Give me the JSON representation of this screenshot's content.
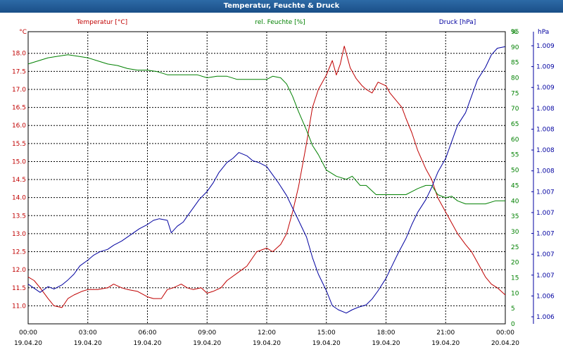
{
  "window": {
    "title": "Temperatur, Feuchte & Druck"
  },
  "chart_data": {
    "type": "line",
    "title": "Temperatur, Feuchte & Druck",
    "grid": true,
    "x_ticks": [
      {
        "time": "00:00",
        "date": "19.04.20"
      },
      {
        "time": "03:00",
        "date": "19.04.20"
      },
      {
        "time": "06:00",
        "date": "19.04.20"
      },
      {
        "time": "09:00",
        "date": "19.04.20"
      },
      {
        "time": "12:00",
        "date": "19.04.20"
      },
      {
        "time": "15:00",
        "date": "19.04.20"
      },
      {
        "time": "18:00",
        "date": "19.04.20"
      },
      {
        "time": "21:00",
        "date": "19.04.20"
      },
      {
        "time": "00:00",
        "date": "20.04.20"
      }
    ],
    "x_range_hours": [
      0,
      24
    ],
    "axes": {
      "temperature": {
        "label": "Temperatur [°C]",
        "unit": "°C",
        "color": "#c00000",
        "range": [
          10.5,
          18.6
        ],
        "ticks": [
          "11.0",
          "11.5",
          "12.0",
          "12.5",
          "13.0",
          "13.5",
          "14.0",
          "14.5",
          "15.0",
          "15.5",
          "16.0",
          "16.5",
          "17.0",
          "17.5",
          "18.0"
        ]
      },
      "humidity": {
        "label": "rel. Feuchte [%]",
        "unit": "%",
        "color": "#008000",
        "range": [
          0,
          95
        ],
        "ticks": [
          "0",
          "5",
          "10",
          "15",
          "20",
          "25",
          "30",
          "35",
          "40",
          "45",
          "50",
          "55",
          "60",
          "65",
          "70",
          "75",
          "80",
          "85",
          "90",
          "95"
        ]
      },
      "pressure": {
        "label": "Druck [hPa]",
        "unit": "hPa",
        "color": "#0000a0",
        "range": [
          1005.75,
          1009.28
        ],
        "ticks": [
          "1.006",
          "1.006",
          "1.007",
          "1.007",
          "1.007",
          "1.007",
          "1.007",
          "1.008",
          "1.008",
          "1.008",
          "1.008",
          "1.009",
          "1.009",
          "1.009"
        ]
      }
    },
    "series": [
      {
        "name": "Temperatur [°C]",
        "axis": "temperature",
        "color": "#c00000",
        "x": [
          0,
          0.3,
          0.6,
          1,
          1.3,
          1.7,
          2,
          2.3,
          2.7,
          3,
          3.5,
          4,
          4.3,
          4.7,
          5,
          5.5,
          6,
          6.3,
          6.7,
          7,
          7.3,
          7.7,
          8,
          8.3,
          8.7,
          9,
          9.3,
          9.7,
          10,
          10.5,
          11,
          11.5,
          12,
          12.3,
          12.7,
          13,
          13.3,
          13.6,
          14,
          14.3,
          14.6,
          15,
          15.3,
          15.5,
          15.7,
          15.9,
          16,
          16.2,
          16.5,
          16.8,
          17,
          17.3,
          17.6,
          18,
          18.2,
          18.5,
          18.8,
          19,
          19.3,
          19.6,
          20,
          20.3,
          20.6,
          21,
          21.3,
          21.6,
          22,
          22.3,
          22.6,
          23,
          23.3,
          23.6,
          24
        ],
        "y": [
          11.8,
          11.7,
          11.5,
          11.2,
          11.0,
          10.95,
          11.2,
          11.3,
          11.4,
          11.45,
          11.45,
          11.5,
          11.6,
          11.5,
          11.45,
          11.4,
          11.25,
          11.2,
          11.2,
          11.45,
          11.5,
          11.6,
          11.5,
          11.45,
          11.5,
          11.35,
          11.4,
          11.5,
          11.7,
          11.9,
          12.1,
          12.5,
          12.6,
          12.5,
          12.7,
          13.0,
          13.6,
          14.3,
          15.5,
          16.5,
          17.0,
          17.4,
          17.8,
          17.4,
          17.7,
          18.2,
          18.0,
          17.6,
          17.3,
          17.1,
          17.0,
          16.9,
          17.2,
          17.1,
          16.9,
          16.7,
          16.5,
          16.2,
          15.8,
          15.3,
          14.8,
          14.5,
          14.0,
          13.6,
          13.3,
          13.0,
          12.7,
          12.5,
          12.2,
          11.8,
          11.6,
          11.5,
          11.3
        ]
      },
      {
        "name": "rel. Feuchte [%]",
        "axis": "humidity",
        "color": "#008000",
        "x": [
          0,
          0.5,
          1,
          1.5,
          2,
          2.5,
          3,
          3.5,
          4,
          4.5,
          5,
          5.5,
          6,
          6.5,
          7,
          7.5,
          8,
          8.5,
          9,
          9.5,
          10,
          10.5,
          11,
          11.5,
          12,
          12.3,
          12.7,
          13,
          13.3,
          13.6,
          14,
          14.3,
          14.6,
          15,
          15.5,
          16,
          16.3,
          16.7,
          17,
          17.5,
          18,
          18.5,
          19,
          19.3,
          19.6,
          20,
          20.3,
          20.6,
          21,
          21.3,
          21.6,
          22,
          22.5,
          23,
          23.5,
          24
        ],
        "y": [
          84.5,
          85.5,
          86.5,
          87,
          87.5,
          87,
          86.5,
          85.5,
          84.5,
          84,
          83,
          82.5,
          82.5,
          82,
          81,
          81,
          81,
          81,
          80,
          80.5,
          80.5,
          79.5,
          79.5,
          79.5,
          79.5,
          80.5,
          80,
          78,
          74,
          69,
          63,
          58,
          55,
          50,
          48,
          47,
          48,
          45,
          45,
          42,
          42,
          42,
          42,
          43,
          44,
          45,
          45,
          42,
          41,
          41.5,
          40,
          39,
          39,
          39,
          40,
          40
        ]
      },
      {
        "name": "Druck [hPa]",
        "axis": "pressure",
        "color": "#0000a0",
        "x": [
          0,
          0.3,
          0.6,
          1,
          1.3,
          1.7,
          2,
          2.3,
          2.6,
          3,
          3.3,
          3.6,
          4,
          4.3,
          4.7,
          5,
          5.3,
          5.6,
          6,
          6.3,
          6.6,
          7,
          7.2,
          7.5,
          7.8,
          8,
          8.3,
          8.6,
          9,
          9.3,
          9.6,
          10,
          10.3,
          10.6,
          11,
          11.3,
          11.6,
          12,
          12.3,
          12.6,
          13,
          13.3,
          13.6,
          14,
          14.3,
          14.6,
          15,
          15.3,
          15.6,
          16,
          16.3,
          16.6,
          17,
          17.3,
          17.6,
          18,
          18.3,
          18.6,
          19,
          19.3,
          19.6,
          20,
          20.3,
          20.6,
          21,
          21.3,
          21.6,
          22,
          22.3,
          22.6,
          23,
          23.3,
          23.6,
          24
        ],
        "y": [
          1006.23,
          1006.18,
          1006.13,
          1006.2,
          1006.17,
          1006.22,
          1006.28,
          1006.35,
          1006.45,
          1006.52,
          1006.58,
          1006.62,
          1006.65,
          1006.7,
          1006.75,
          1006.8,
          1006.85,
          1006.9,
          1006.95,
          1007.0,
          1007.02,
          1007.0,
          1006.85,
          1006.93,
          1006.98,
          1007.05,
          1007.15,
          1007.25,
          1007.35,
          1007.45,
          1007.58,
          1007.7,
          1007.75,
          1007.82,
          1007.78,
          1007.72,
          1007.7,
          1007.65,
          1007.55,
          1007.45,
          1007.3,
          1007.15,
          1007.0,
          1006.8,
          1006.55,
          1006.35,
          1006.15,
          1005.97,
          1005.92,
          1005.88,
          1005.92,
          1005.95,
          1005.98,
          1006.05,
          1006.15,
          1006.3,
          1006.45,
          1006.6,
          1006.78,
          1006.95,
          1007.1,
          1007.25,
          1007.4,
          1007.58,
          1007.75,
          1007.95,
          1008.15,
          1008.3,
          1008.5,
          1008.7,
          1008.85,
          1009.0,
          1009.08,
          1009.1
        ]
      }
    ]
  }
}
